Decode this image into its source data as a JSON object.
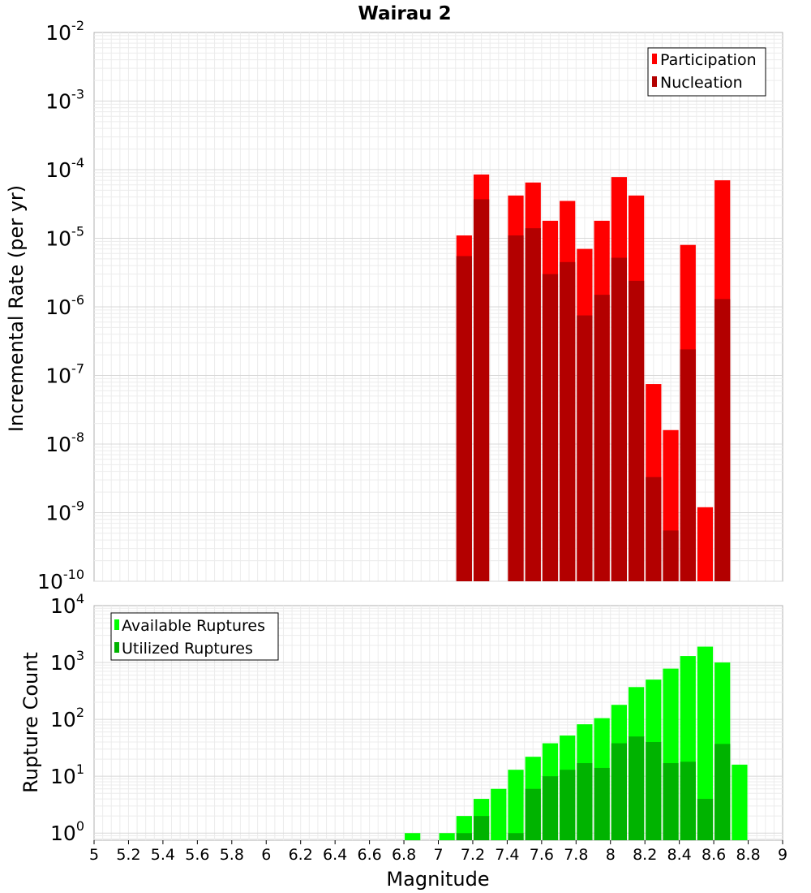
{
  "chart_data": [
    {
      "type": "bar",
      "title": "Wairau 2",
      "ylabel": "Incremental Rate (per yr)",
      "xlabel": "",
      "yscale": "log",
      "ylim": [
        1e-10,
        0.01
      ],
      "xlim": [
        5,
        9
      ],
      "grid": true,
      "legend_position": "top-right",
      "y_tick_bases": [
        "10",
        "10",
        "10",
        "10",
        "10",
        "10",
        "10",
        "10",
        "10"
      ],
      "y_tick_exponents": [
        "-10",
        "-9",
        "-8",
        "-7",
        "-6",
        "-5",
        "-4",
        "-3",
        "-2"
      ],
      "x_ticks": [
        "5",
        "5.2",
        "5.4",
        "5.6",
        "5.8",
        "6",
        "6.2",
        "6.4",
        "6.6",
        "6.8",
        "7",
        "7.2",
        "7.4",
        "7.6",
        "7.8",
        "8",
        "8.2",
        "8.4",
        "8.6",
        "8.8",
        "9"
      ],
      "series": [
        {
          "name": "Participation",
          "color": "#ff0000",
          "x": [
            7.15,
            7.25,
            7.45,
            7.55,
            7.65,
            7.75,
            7.85,
            7.95,
            8.05,
            8.15,
            8.25,
            8.35,
            8.45,
            8.55,
            8.65
          ],
          "values": [
            1.1e-05,
            8.5e-05,
            4.2e-05,
            6.5e-05,
            1.8e-05,
            3.5e-05,
            7e-06,
            1.8e-05,
            7.8e-05,
            4.2e-05,
            7.5e-08,
            1.6e-08,
            8e-06,
            1.2e-09,
            7e-05
          ]
        },
        {
          "name": "Nucleation",
          "color": "#b30000",
          "x": [
            7.15,
            7.25,
            7.45,
            7.55,
            7.65,
            7.75,
            7.85,
            7.95,
            8.05,
            8.15,
            8.25,
            8.35,
            8.45,
            8.65
          ],
          "values": [
            5.5e-06,
            3.7e-05,
            1.1e-05,
            1.4e-05,
            3e-06,
            4.5e-06,
            7.5e-07,
            1.5e-06,
            5.2e-06,
            2.4e-06,
            3.3e-09,
            5.5e-10,
            2.4e-07,
            1.3e-06
          ]
        }
      ]
    },
    {
      "type": "bar",
      "title": "",
      "xlabel": "Magnitude",
      "ylabel": "Rupture Count",
      "yscale": "log",
      "ylim": [
        0.75,
        10000
      ],
      "xlim": [
        5,
        9
      ],
      "grid": true,
      "legend_position": "top-left",
      "y_tick_bases": [
        "10",
        "10",
        "10",
        "10",
        "10"
      ],
      "y_tick_exponents": [
        "0",
        "1",
        "2",
        "3",
        "4"
      ],
      "x_ticks": [
        "5",
        "5.2",
        "5.4",
        "5.6",
        "5.8",
        "6",
        "6.2",
        "6.4",
        "6.6",
        "6.8",
        "7",
        "7.2",
        "7.4",
        "7.6",
        "7.8",
        "8",
        "8.2",
        "8.4",
        "8.6",
        "8.8",
        "9"
      ],
      "series": [
        {
          "name": "Available Ruptures",
          "color": "#00ff00",
          "x": [
            6.85,
            7.05,
            7.15,
            7.25,
            7.35,
            7.45,
            7.55,
            7.65,
            7.75,
            7.85,
            7.95,
            8.05,
            8.15,
            8.25,
            8.35,
            8.45,
            8.55,
            8.65,
            8.75
          ],
          "values": [
            1,
            1,
            2,
            4,
            6,
            13,
            22,
            38,
            52,
            82,
            105,
            180,
            370,
            500,
            780,
            1300,
            1900,
            1000,
            16
          ]
        },
        {
          "name": "Utilized Ruptures",
          "color": "#00b300",
          "x": [
            7.15,
            7.25,
            7.45,
            7.55,
            7.65,
            7.75,
            7.85,
            7.95,
            8.05,
            8.15,
            8.25,
            8.35,
            8.45,
            8.55,
            8.65
          ],
          "values": [
            1,
            2,
            1,
            6,
            10,
            13,
            17,
            14,
            38,
            50,
            40,
            17,
            18,
            4,
            37
          ]
        }
      ]
    }
  ]
}
